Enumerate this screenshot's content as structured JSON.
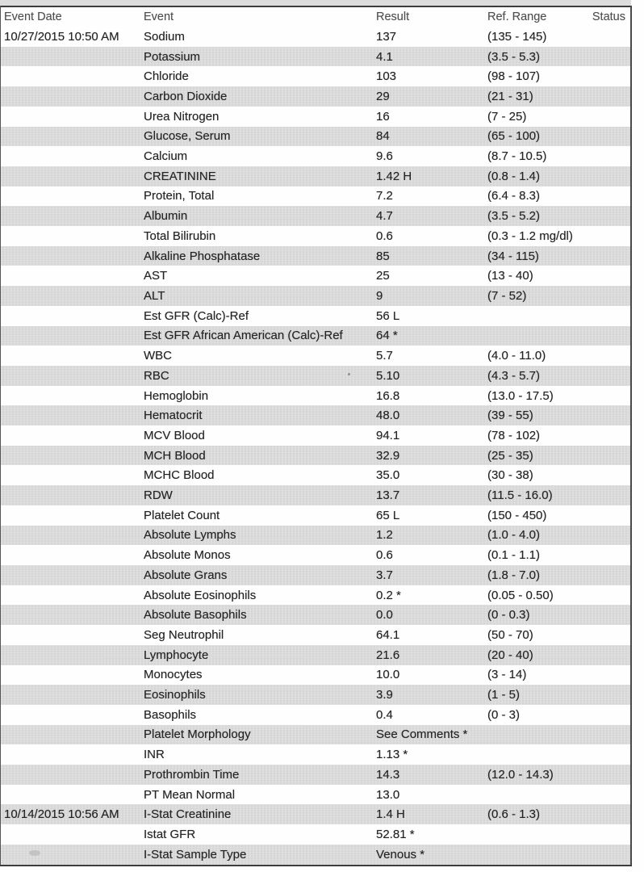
{
  "colors": {
    "stripe_gray": "#dbdbdb",
    "row_text": "#242424",
    "header_text": "#4f4f4f",
    "rule_dark": "#3c3c3c"
  },
  "table": {
    "headers": {
      "event_date": "Event Date",
      "event": "Event",
      "result": "Result",
      "ref_range": "Ref. Range",
      "status": "Status"
    },
    "rows": [
      {
        "date": "10/27/2015 10:50 AM",
        "event": "Sodium",
        "result": "137",
        "ref": "(135 - 145)",
        "status": ""
      },
      {
        "date": "",
        "event": "Potassium",
        "result": "4.1",
        "ref": "(3.5 - 5.3)",
        "status": ""
      },
      {
        "date": "",
        "event": "Chloride",
        "result": "103",
        "ref": "(98 - 107)",
        "status": ""
      },
      {
        "date": "",
        "event": "Carbon Dioxide",
        "result": "29",
        "ref": "(21 - 31)",
        "status": ""
      },
      {
        "date": "",
        "event": "Urea Nitrogen",
        "result": "16",
        "ref": "(7 - 25)",
        "status": ""
      },
      {
        "date": "",
        "event": "Glucose, Serum",
        "result": "84",
        "ref": "(65 - 100)",
        "status": ""
      },
      {
        "date": "",
        "event": "Calcium",
        "result": "9.6",
        "ref": "(8.7 - 10.5)",
        "status": ""
      },
      {
        "date": "",
        "event": "CREATININE",
        "result": "1.42 H",
        "ref": "(0.8 - 1.4)",
        "status": ""
      },
      {
        "date": "",
        "event": "Protein, Total",
        "result": "7.2",
        "ref": "(6.4 - 8.3)",
        "status": ""
      },
      {
        "date": "",
        "event": "Albumin",
        "result": "4.7",
        "ref": "(3.5 - 5.2)",
        "status": ""
      },
      {
        "date": "",
        "event": "Total Bilirubin",
        "result": "0.6",
        "ref": "(0.3 - 1.2 mg/dl)",
        "status": ""
      },
      {
        "date": "",
        "event": "Alkaline Phosphatase",
        "result": "85",
        "ref": "(34 - 115)",
        "status": ""
      },
      {
        "date": "",
        "event": "AST",
        "result": "25",
        "ref": "(13 - 40)",
        "status": ""
      },
      {
        "date": "",
        "event": "ALT",
        "result": "9",
        "ref": "(7 - 52)",
        "status": ""
      },
      {
        "date": "",
        "event": "Est GFR (Calc)-Ref",
        "result": "56 L",
        "ref": "",
        "status": ""
      },
      {
        "date": "",
        "event": "Est GFR African American (Calc)-Ref",
        "result": "64 *",
        "ref": "",
        "status": ""
      },
      {
        "date": "",
        "event": "WBC",
        "result": "5.7",
        "ref": "(4.0 - 11.0)",
        "status": ""
      },
      {
        "date": "",
        "event": "RBC",
        "result": "5.10",
        "ref": "(4.3 - 5.7)",
        "status": ""
      },
      {
        "date": "",
        "event": "Hemoglobin",
        "result": "16.8",
        "ref": "(13.0 - 17.5)",
        "status": ""
      },
      {
        "date": "",
        "event": "Hematocrit",
        "result": "48.0",
        "ref": "(39 - 55)",
        "status": ""
      },
      {
        "date": "",
        "event": "MCV Blood",
        "result": "94.1",
        "ref": "(78 - 102)",
        "status": ""
      },
      {
        "date": "",
        "event": "MCH Blood",
        "result": "32.9",
        "ref": "(25 - 35)",
        "status": ""
      },
      {
        "date": "",
        "event": "MCHC Blood",
        "result": "35.0",
        "ref": "(30 - 38)",
        "status": ""
      },
      {
        "date": "",
        "event": "RDW",
        "result": "13.7",
        "ref": "(11.5 - 16.0)",
        "status": ""
      },
      {
        "date": "",
        "event": "Platelet Count",
        "result": "65 L",
        "ref": "(150 - 450)",
        "status": ""
      },
      {
        "date": "",
        "event": "Absolute Lymphs",
        "result": "1.2",
        "ref": "(1.0 - 4.0)",
        "status": ""
      },
      {
        "date": "",
        "event": "Absolute Monos",
        "result": "0.6",
        "ref": "(0.1 - 1.1)",
        "status": ""
      },
      {
        "date": "",
        "event": "Absolute Grans",
        "result": "3.7",
        "ref": "(1.8 - 7.0)",
        "status": ""
      },
      {
        "date": "",
        "event": "Absolute Eosinophils",
        "result": "0.2 *",
        "ref": "(0.05 - 0.50)",
        "status": ""
      },
      {
        "date": "",
        "event": "Absolute Basophils",
        "result": "0.0",
        "ref": "(0 - 0.3)",
        "status": ""
      },
      {
        "date": "",
        "event": "Seg Neutrophil",
        "result": "64.1",
        "ref": "(50 - 70)",
        "status": ""
      },
      {
        "date": "",
        "event": "Lymphocyte",
        "result": "21.6",
        "ref": "(20 - 40)",
        "status": ""
      },
      {
        "date": "",
        "event": "Monocytes",
        "result": "10.0",
        "ref": "(3 - 14)",
        "status": ""
      },
      {
        "date": "",
        "event": "Eosinophils",
        "result": "3.9",
        "ref": "(1 - 5)",
        "status": ""
      },
      {
        "date": "",
        "event": "Basophils",
        "result": "0.4",
        "ref": "(0 - 3)",
        "status": ""
      },
      {
        "date": "",
        "event": "Platelet Morphology",
        "result": "See Comments *",
        "ref": "",
        "status": ""
      },
      {
        "date": "",
        "event": "INR",
        "result": "1.13 *",
        "ref": "",
        "status": ""
      },
      {
        "date": "",
        "event": "Prothrombin Time",
        "result": "14.3",
        "ref": "(12.0 - 14.3)",
        "status": ""
      },
      {
        "date": "",
        "event": "PT Mean Normal",
        "result": "13.0",
        "ref": "",
        "status": ""
      },
      {
        "date": "10/14/2015 10:56 AM",
        "event": "I-Stat Creatinine",
        "result": "1.4 H",
        "ref": "(0.6 - 1.3)",
        "status": ""
      },
      {
        "date": "",
        "event": "Istat GFR",
        "result": "52.81 *",
        "ref": "",
        "status": ""
      },
      {
        "date": "",
        "event": "I-Stat Sample Type",
        "result": "Venous *",
        "ref": "",
        "status": ""
      }
    ]
  }
}
